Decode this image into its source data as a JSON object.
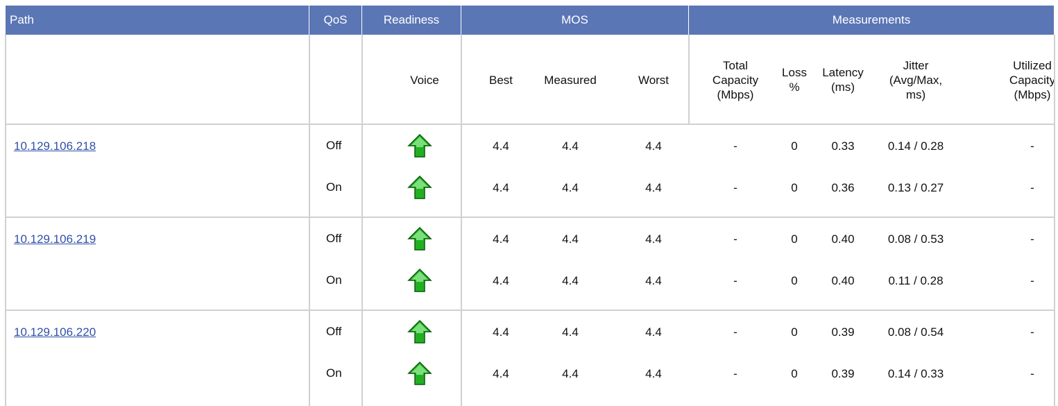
{
  "header": [
    "Path",
    "QoS",
    "Readiness",
    "MOS",
    "Measurements"
  ],
  "subheader": [
    "Voice",
    "Best",
    "Measured",
    "Worst",
    "Total Capacity (Mbps)",
    "Loss %",
    "Latency (ms)",
    "Jitter (Avg/Max, ms)",
    "Utilized Capacity (Mbps)"
  ],
  "paths": [
    {
      "path": "10.129.106.218",
      "rows": [
        {
          "qos": "Off",
          "cells": [
            "4.4",
            "4.4",
            "4.4",
            "-",
            "0",
            "0.33",
            "0.14 / 0.28",
            "-"
          ]
        },
        {
          "qos": "On",
          "cells": [
            "4.4",
            "4.4",
            "4.4",
            "-",
            "0",
            "0.36",
            "0.13 / 0.27",
            "-"
          ]
        }
      ]
    },
    {
      "path": "10.129.106.219",
      "rows": [
        {
          "qos": "Off",
          "cells": [
            "4.4",
            "4.4",
            "4.4",
            "-",
            "0",
            "0.40",
            "0.08 / 0.53",
            "-"
          ]
        },
        {
          "qos": "On",
          "cells": [
            "4.4",
            "4.4",
            "4.4",
            "-",
            "0",
            "0.40",
            "0.11 / 0.28",
            "-"
          ]
        }
      ]
    },
    {
      "path": "10.129.106.220",
      "rows": [
        {
          "qos": "Off",
          "cells": [
            "4.4",
            "4.4",
            "4.4",
            "-",
            "0",
            "0.39",
            "0.08 / 0.54",
            "-"
          ]
        },
        {
          "qos": "On",
          "cells": [
            "4.4",
            "4.4",
            "4.4",
            "-",
            "0",
            "0.39",
            "0.14 / 0.33",
            "-"
          ]
        }
      ]
    }
  ]
}
